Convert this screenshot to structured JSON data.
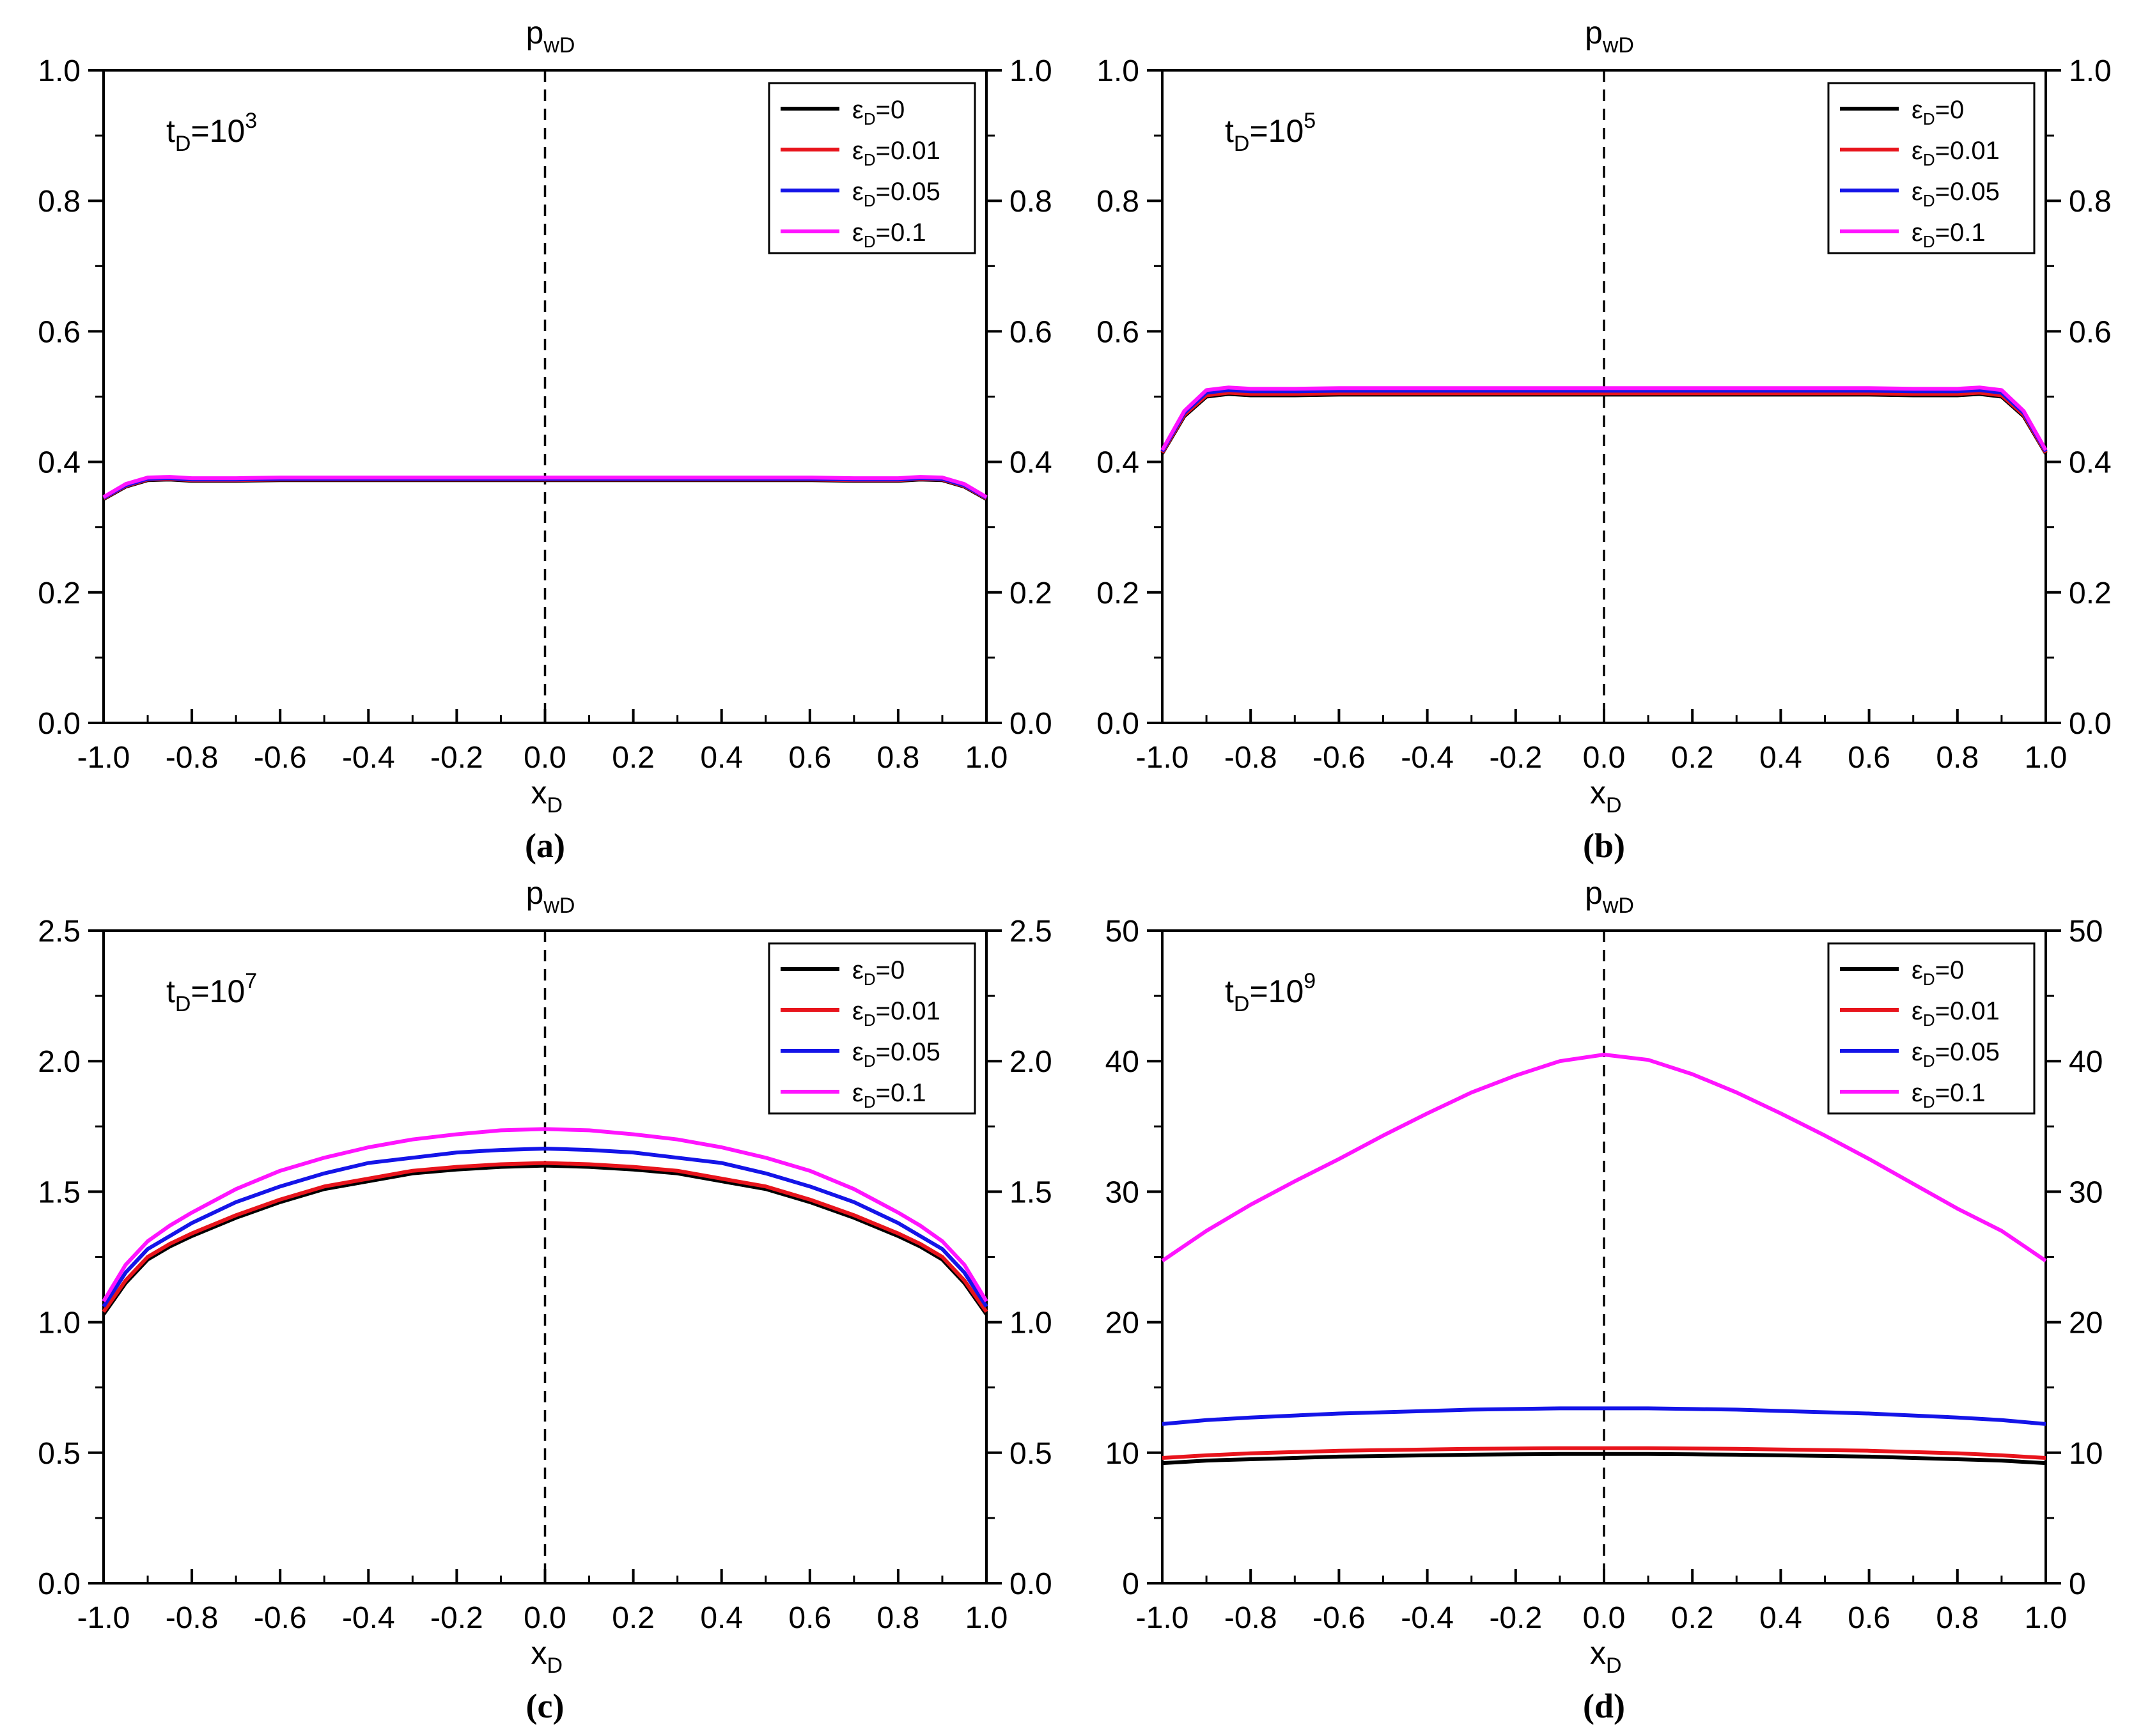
{
  "chart_data": [
    {
      "type": "line",
      "panel_label": "(a)",
      "ylabel_main": "p",
      "ylabel_sub": "wD",
      "xlabel_main": "x",
      "xlabel_sub": "D",
      "time": {
        "base": "t",
        "sub": "D",
        "text": "=10",
        "exp": "3"
      },
      "xlim": [
        -1.0,
        1.0
      ],
      "ylim": [
        0.0,
        1.0
      ],
      "xticks": [
        "-1.0",
        "-0.8",
        "-0.6",
        "-0.4",
        "-0.2",
        "0.0",
        "0.2",
        "0.4",
        "0.6",
        "0.8",
        "1.0"
      ],
      "yticks": [
        "0.0",
        "0.2",
        "0.4",
        "0.6",
        "0.8",
        "1.0"
      ],
      "legend_position": "top-right",
      "x": [
        -1.0,
        -0.95,
        -0.9,
        -0.85,
        -0.8,
        -0.7,
        -0.6,
        -0.4,
        -0.2,
        0.0,
        0.2,
        0.4,
        0.6,
        0.7,
        0.8,
        0.85,
        0.9,
        0.95,
        1.0
      ],
      "series": [
        {
          "name": "ε",
          "sub": "D",
          "suffix": "=0",
          "color": "#000000",
          "values": [
            0.343,
            0.362,
            0.372,
            0.373,
            0.371,
            0.371,
            0.372,
            0.372,
            0.372,
            0.372,
            0.372,
            0.372,
            0.372,
            0.371,
            0.371,
            0.373,
            0.372,
            0.362,
            0.343
          ]
        },
        {
          "name": "ε",
          "sub": "D",
          "suffix": "=0.01",
          "color": "#e8141c",
          "values": [
            0.344,
            0.363,
            0.373,
            0.374,
            0.372,
            0.372,
            0.373,
            0.373,
            0.373,
            0.373,
            0.373,
            0.373,
            0.373,
            0.372,
            0.372,
            0.374,
            0.373,
            0.363,
            0.344
          ]
        },
        {
          "name": "ε",
          "sub": "D",
          "suffix": "=0.05",
          "color": "#1414e8",
          "values": [
            0.345,
            0.364,
            0.374,
            0.375,
            0.373,
            0.373,
            0.374,
            0.374,
            0.374,
            0.374,
            0.374,
            0.374,
            0.374,
            0.373,
            0.373,
            0.375,
            0.374,
            0.364,
            0.345
          ]
        },
        {
          "name": "ε",
          "sub": "D",
          "suffix": "=0.1",
          "color": "#ff14ff",
          "values": [
            0.346,
            0.366,
            0.376,
            0.377,
            0.375,
            0.375,
            0.376,
            0.376,
            0.376,
            0.376,
            0.376,
            0.376,
            0.376,
            0.375,
            0.375,
            0.377,
            0.376,
            0.366,
            0.346
          ]
        }
      ]
    },
    {
      "type": "line",
      "panel_label": "(b)",
      "ylabel_main": "p",
      "ylabel_sub": "wD",
      "xlabel_main": "x",
      "xlabel_sub": "D",
      "time": {
        "base": "t",
        "sub": "D",
        "text": "=10",
        "exp": "5"
      },
      "xlim": [
        -1.0,
        1.0
      ],
      "ylim": [
        0.0,
        1.0
      ],
      "xticks": [
        "-1.0",
        "-0.8",
        "-0.6",
        "-0.4",
        "-0.2",
        "0.0",
        "0.2",
        "0.4",
        "0.6",
        "0.8",
        "1.0"
      ],
      "yticks": [
        "0.0",
        "0.2",
        "0.4",
        "0.6",
        "0.8",
        "1.0"
      ],
      "legend_position": "top-right",
      "x": [
        -1.0,
        -0.95,
        -0.9,
        -0.85,
        -0.8,
        -0.7,
        -0.6,
        -0.4,
        -0.2,
        0.0,
        0.2,
        0.4,
        0.6,
        0.7,
        0.8,
        0.85,
        0.9,
        0.95,
        1.0
      ],
      "series": [
        {
          "name": "ε",
          "sub": "D",
          "suffix": "=0",
          "color": "#000000",
          "values": [
            0.413,
            0.47,
            0.5,
            0.504,
            0.502,
            0.502,
            0.503,
            0.503,
            0.503,
            0.503,
            0.503,
            0.503,
            0.503,
            0.502,
            0.502,
            0.504,
            0.5,
            0.47,
            0.413
          ]
        },
        {
          "name": "ε",
          "sub": "D",
          "suffix": "=0.01",
          "color": "#e8141c",
          "values": [
            0.414,
            0.472,
            0.502,
            0.506,
            0.504,
            0.504,
            0.505,
            0.505,
            0.505,
            0.505,
            0.505,
            0.505,
            0.505,
            0.504,
            0.504,
            0.506,
            0.502,
            0.472,
            0.414
          ]
        },
        {
          "name": "ε",
          "sub": "D",
          "suffix": "=0.05",
          "color": "#1414e8",
          "values": [
            0.416,
            0.475,
            0.506,
            0.51,
            0.508,
            0.508,
            0.509,
            0.509,
            0.509,
            0.509,
            0.509,
            0.509,
            0.509,
            0.508,
            0.508,
            0.51,
            0.506,
            0.475,
            0.416
          ]
        },
        {
          "name": "ε",
          "sub": "D",
          "suffix": "=0.1",
          "color": "#ff14ff",
          "values": [
            0.418,
            0.478,
            0.51,
            0.514,
            0.512,
            0.512,
            0.513,
            0.513,
            0.513,
            0.513,
            0.513,
            0.513,
            0.513,
            0.512,
            0.512,
            0.514,
            0.51,
            0.478,
            0.418
          ]
        }
      ]
    },
    {
      "type": "line",
      "panel_label": "(c)",
      "ylabel_main": "p",
      "ylabel_sub": "wD",
      "xlabel_main": "x",
      "xlabel_sub": "D",
      "time": {
        "base": "t",
        "sub": "D",
        "text": "=10",
        "exp": "7"
      },
      "xlim": [
        -1.0,
        1.0
      ],
      "ylim": [
        0.0,
        2.5
      ],
      "xticks": [
        "-1.0",
        "-0.8",
        "-0.6",
        "-0.4",
        "-0.2",
        "0.0",
        "0.2",
        "0.4",
        "0.6",
        "0.8",
        "1.0"
      ],
      "yticks": [
        "0.0",
        "0.5",
        "1.0",
        "1.5",
        "2.0",
        "2.5"
      ],
      "legend_position": "top-right",
      "x": [
        -1.0,
        -0.95,
        -0.9,
        -0.85,
        -0.8,
        -0.7,
        -0.6,
        -0.5,
        -0.4,
        -0.3,
        -0.2,
        -0.1,
        0.0,
        0.1,
        0.2,
        0.3,
        0.4,
        0.5,
        0.6,
        0.7,
        0.8,
        0.85,
        0.9,
        0.95,
        1.0
      ],
      "series": [
        {
          "name": "ε",
          "sub": "D",
          "suffix": "=0",
          "color": "#000000",
          "values": [
            1.03,
            1.15,
            1.24,
            1.29,
            1.33,
            1.4,
            1.46,
            1.51,
            1.54,
            1.57,
            1.585,
            1.595,
            1.6,
            1.595,
            1.585,
            1.57,
            1.54,
            1.51,
            1.46,
            1.4,
            1.33,
            1.29,
            1.24,
            1.15,
            1.03
          ]
        },
        {
          "name": "ε",
          "sub": "D",
          "suffix": "=0.01",
          "color": "#e8141c",
          "values": [
            1.04,
            1.16,
            1.25,
            1.3,
            1.34,
            1.41,
            1.47,
            1.52,
            1.55,
            1.58,
            1.595,
            1.605,
            1.61,
            1.605,
            1.595,
            1.58,
            1.55,
            1.52,
            1.47,
            1.41,
            1.34,
            1.3,
            1.25,
            1.16,
            1.04
          ]
        },
        {
          "name": "ε",
          "sub": "D",
          "suffix": "=0.05",
          "color": "#1414e8",
          "values": [
            1.06,
            1.19,
            1.28,
            1.33,
            1.38,
            1.46,
            1.52,
            1.57,
            1.61,
            1.63,
            1.65,
            1.66,
            1.665,
            1.66,
            1.65,
            1.63,
            1.61,
            1.57,
            1.52,
            1.46,
            1.38,
            1.33,
            1.28,
            1.19,
            1.06
          ]
        },
        {
          "name": "ε",
          "sub": "D",
          "suffix": "=0.1",
          "color": "#ff14ff",
          "values": [
            1.08,
            1.22,
            1.31,
            1.37,
            1.42,
            1.51,
            1.58,
            1.63,
            1.67,
            1.7,
            1.72,
            1.735,
            1.74,
            1.735,
            1.72,
            1.7,
            1.67,
            1.63,
            1.58,
            1.51,
            1.42,
            1.37,
            1.31,
            1.22,
            1.08
          ]
        }
      ]
    },
    {
      "type": "line",
      "panel_label": "(d)",
      "ylabel_main": "p",
      "ylabel_sub": "wD",
      "xlabel_main": "x",
      "xlabel_sub": "D",
      "time": {
        "base": "t",
        "sub": "D",
        "text": "=10",
        "exp": "9"
      },
      "xlim": [
        -1.0,
        1.0
      ],
      "ylim": [
        0,
        50
      ],
      "xticks": [
        "-1.0",
        "-0.8",
        "-0.6",
        "-0.4",
        "-0.2",
        "0.0",
        "0.2",
        "0.4",
        "0.6",
        "0.8",
        "1.0"
      ],
      "yticks": [
        "0",
        "10",
        "20",
        "30",
        "40",
        "50"
      ],
      "legend_position": "top-right",
      "x": [
        -1.0,
        -0.9,
        -0.8,
        -0.7,
        -0.6,
        -0.5,
        -0.4,
        -0.3,
        -0.2,
        -0.1,
        0.0,
        0.1,
        0.2,
        0.3,
        0.4,
        0.5,
        0.6,
        0.7,
        0.8,
        0.9,
        1.0
      ],
      "series": [
        {
          "name": "ε",
          "sub": "D",
          "suffix": "=0",
          "color": "#000000",
          "values": [
            9.2,
            9.4,
            9.5,
            9.6,
            9.7,
            9.75,
            9.8,
            9.85,
            9.88,
            9.9,
            9.9,
            9.9,
            9.88,
            9.85,
            9.8,
            9.75,
            9.7,
            9.6,
            9.5,
            9.4,
            9.2
          ]
        },
        {
          "name": "ε",
          "sub": "D",
          "suffix": "=0.01",
          "color": "#e8141c",
          "values": [
            9.6,
            9.8,
            9.95,
            10.05,
            10.15,
            10.2,
            10.25,
            10.3,
            10.32,
            10.35,
            10.35,
            10.35,
            10.32,
            10.3,
            10.25,
            10.2,
            10.15,
            10.05,
            9.95,
            9.8,
            9.6
          ]
        },
        {
          "name": "ε",
          "sub": "D",
          "suffix": "=0.05",
          "color": "#1414e8",
          "values": [
            12.2,
            12.5,
            12.7,
            12.85,
            13.0,
            13.1,
            13.2,
            13.3,
            13.35,
            13.4,
            13.4,
            13.4,
            13.35,
            13.3,
            13.2,
            13.1,
            13.0,
            12.85,
            12.7,
            12.5,
            12.2
          ]
        },
        {
          "name": "ε",
          "sub": "D",
          "suffix": "=0.1",
          "color": "#ff14ff",
          "values": [
            24.7,
            27.0,
            29.0,
            30.8,
            32.5,
            34.3,
            36.0,
            37.6,
            38.9,
            40.0,
            40.5,
            40.1,
            39.0,
            37.6,
            36.0,
            34.3,
            32.5,
            30.6,
            28.7,
            27.0,
            24.7
          ]
        }
      ]
    }
  ]
}
